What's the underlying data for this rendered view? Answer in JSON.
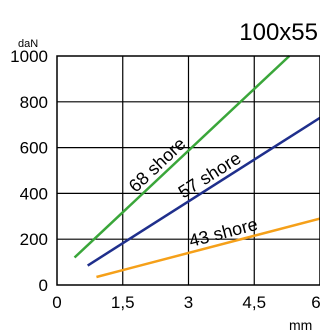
{
  "chart_data": {
    "type": "line",
    "title": "100x55",
    "ylabel": "daN",
    "xlabel": "mm",
    "xlim": [
      0,
      6
    ],
    "ylim": [
      0,
      1000
    ],
    "x_ticks": [
      "0",
      "1,5",
      "3",
      "4,5",
      "6"
    ],
    "y_ticks": [
      "0",
      "200",
      "400",
      "600",
      "800",
      "1000"
    ],
    "x_tick_values": [
      0,
      1.5,
      3,
      4.5,
      6
    ],
    "y_tick_values": [
      0,
      200,
      400,
      600,
      800,
      1000
    ],
    "grid": true,
    "series": [
      {
        "name": "68 shore",
        "color": "#3aa63a",
        "x": [
          0.4,
          5.3
        ],
        "y": [
          120,
          1000
        ]
      },
      {
        "name": "57 shore",
        "color": "#1f2f8c",
        "x": [
          0.7,
          6.0
        ],
        "y": [
          85,
          730
        ]
      },
      {
        "name": "43 shore",
        "color": "#f5a019",
        "x": [
          0.9,
          6.0
        ],
        "y": [
          35,
          290
        ]
      }
    ]
  }
}
